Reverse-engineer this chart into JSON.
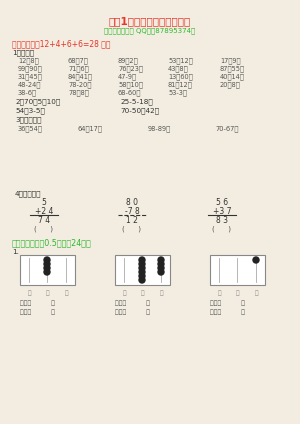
{
  "title": "小学1年级数学下册期末试卷",
  "subtitle": "（「家庭奥数」 QQ群：87895374）",
  "title_color": "#e8342a",
  "subtitle_color": "#2db82d",
  "bg_color": "#f2ede0",
  "section1_header": "一、计算。（12+4+6+6=28 分）",
  "sec1_color": "#e8342a",
  "sub1": "1．口算。",
  "row1": [
    "12－8＝",
    "68＋7＝",
    "89＋2＝",
    "53－12＝",
    "17＋9＝"
  ],
  "row2": [
    "99－90＝",
    "71－6＝",
    "76＋23＝",
    "43＋8＝",
    "87－55＝"
  ],
  "row3": [
    "31＋45＝",
    "84－41＝",
    "47-9＝",
    "13＋60＝",
    "40＋14＝"
  ],
  "row4": [
    "48-24＝",
    "78-20＝",
    "58＋10＝",
    "81＋12＝",
    "20＋8＝"
  ],
  "row5": [
    "38-6＝",
    "78＋8＝",
    "68-60＝",
    "53-3＝",
    ""
  ],
  "sub2a": "2．70＋5＋10＝",
  "sub2b": "25-5-18＝",
  "sub2c": "54＋3-5＝",
  "sub2d": "70-50＋42＝",
  "sub3": "3．竖式计算",
  "row_vert": [
    "36＋54＝",
    "64＋17＝",
    "98-89＝",
    "70-67＝"
  ],
  "sub4": "4、病题门诊",
  "calc1_top": "5",
  "calc1_mid": "+2 4",
  "calc1_bot": "7 4",
  "calc2_top": "8 0",
  "calc2_mid": "-7 8",
  "calc2_bot": "1 2",
  "calc3_top": "5 6",
  "calc3_mid": "+3 7",
  "calc3_bot": "8 3",
  "section2_header": "二、填空（每穰0.5分，全24分）",
  "sec2_color": "#2db82d",
  "sub_fill": "1.",
  "bai": "百",
  "shi": "十",
  "ge": "个",
  "xie_zuo": "写作（",
  "du_zuo": "读作（",
  "close_paren": "          ）"
}
